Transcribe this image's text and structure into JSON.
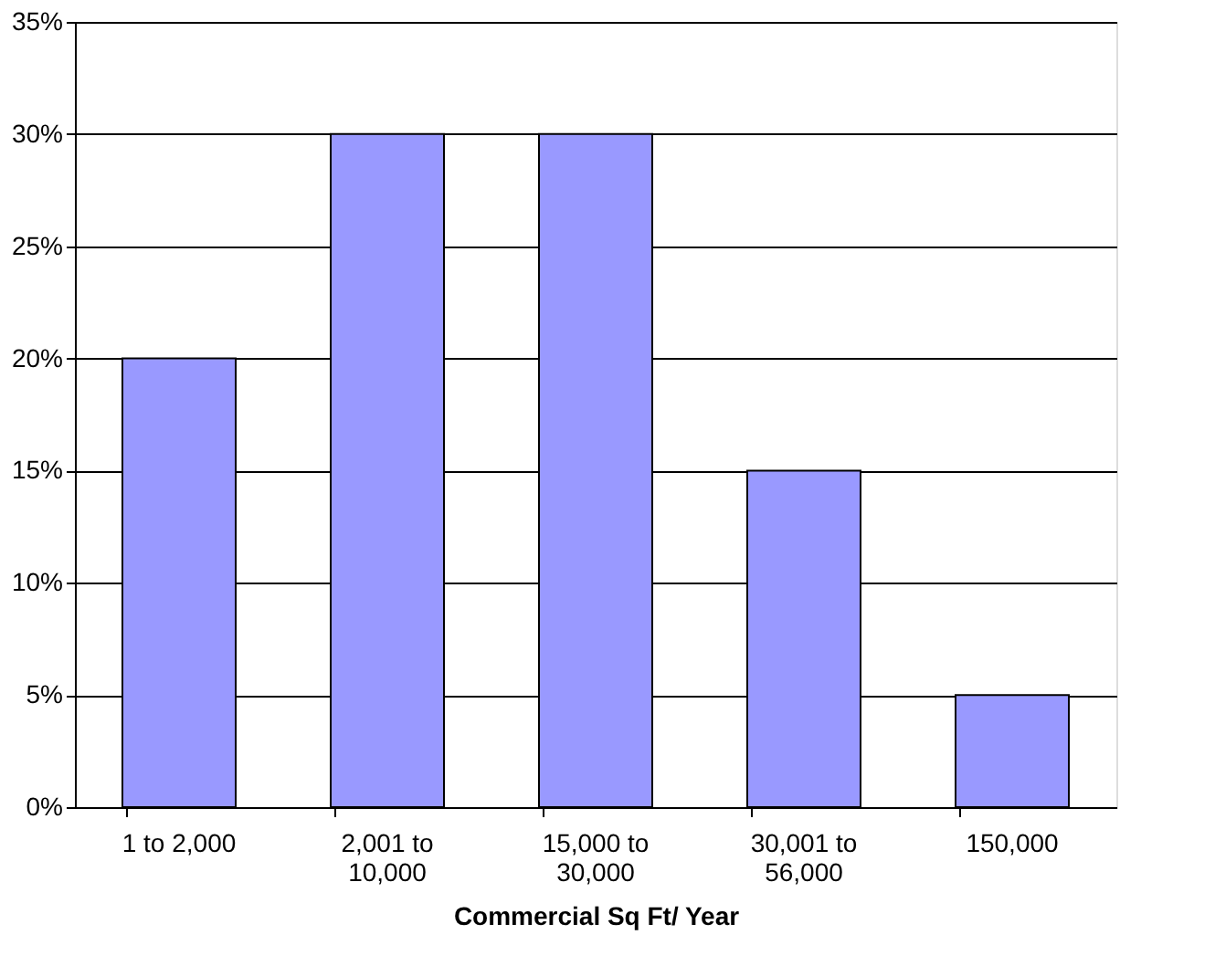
{
  "chart_data": {
    "type": "bar",
    "xlabel": "Commercial Sq Ft/ Year",
    "categories": [
      "1 to 2,000",
      "2,001 to 10,000",
      "15,000 to 30,000",
      "30,001 to 56,000",
      "150,000"
    ],
    "values": [
      20,
      30,
      30,
      15,
      5
    ],
    "color": "#9999ff",
    "ylim": [
      0,
      35
    ],
    "yticks": [
      {
        "value": 0,
        "label": "0%"
      },
      {
        "value": 5,
        "label": "5%"
      },
      {
        "value": 10,
        "label": "10%"
      },
      {
        "value": 15,
        "label": "15%"
      },
      {
        "value": 20,
        "label": "20%"
      },
      {
        "value": 25,
        "label": "25%"
      },
      {
        "value": 30,
        "label": "30%"
      },
      {
        "value": 35,
        "label": "35%"
      }
    ],
    "grid": "y"
  }
}
